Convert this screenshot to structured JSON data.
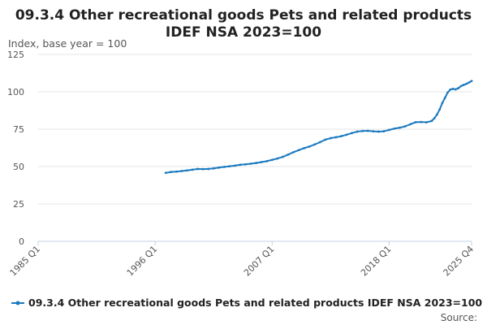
{
  "chart_data": {
    "type": "line",
    "title_line1": "09.3.4 Other recreational goods Pets and related products",
    "title_line2": "IDEF NSA 2023=100",
    "ylabel": "Index, base year = 100",
    "ylim": [
      0,
      125
    ],
    "yticks": [
      0,
      25,
      50,
      75,
      100,
      125
    ],
    "xlim": [
      "1985 Q1",
      "2025 Q4"
    ],
    "xticks": [
      "1985 Q1",
      "1996 Q1",
      "2007 Q1",
      "2018 Q1",
      "2025 Q4"
    ],
    "grid": true,
    "legend_position": "bottom",
    "color": "#1a7ac0",
    "series": [
      {
        "name": "09.3.4 Other recreational goods Pets and related products IDEF NSA 2023=100",
        "points": [
          [
            "1997 Q1",
            45.8
          ],
          [
            "1997 Q3",
            46.4
          ],
          [
            "1998 Q1",
            46.6
          ],
          [
            "1998 Q3",
            47.0
          ],
          [
            "1999 Q1",
            47.4
          ],
          [
            "1999 Q3",
            47.9
          ],
          [
            "2000 Q1",
            48.4
          ],
          [
            "2000 Q3",
            48.3
          ],
          [
            "2001 Q1",
            48.4
          ],
          [
            "2001 Q3",
            48.8
          ],
          [
            "2002 Q1",
            49.3
          ],
          [
            "2002 Q3",
            49.8
          ],
          [
            "2003 Q1",
            50.2
          ],
          [
            "2003 Q3",
            50.6
          ],
          [
            "2004 Q1",
            51.2
          ],
          [
            "2004 Q3",
            51.5
          ],
          [
            "2005 Q1",
            51.9
          ],
          [
            "2005 Q3",
            52.4
          ],
          [
            "2006 Q1",
            53.0
          ],
          [
            "2006 Q3",
            53.6
          ],
          [
            "2007 Q1",
            54.5
          ],
          [
            "2007 Q3",
            55.4
          ],
          [
            "2008 Q1",
            56.5
          ],
          [
            "2008 Q3",
            58.0
          ],
          [
            "2009 Q1",
            59.6
          ],
          [
            "2009 Q3",
            61.0
          ],
          [
            "2010 Q1",
            62.3
          ],
          [
            "2010 Q3",
            63.4
          ],
          [
            "2011 Q1",
            64.8
          ],
          [
            "2011 Q3",
            66.3
          ],
          [
            "2012 Q1",
            68.0
          ],
          [
            "2012 Q3",
            69.0
          ],
          [
            "2013 Q1",
            69.6
          ],
          [
            "2013 Q3",
            70.3
          ],
          [
            "2014 Q1",
            71.3
          ],
          [
            "2014 Q3",
            72.4
          ],
          [
            "2015 Q1",
            73.4
          ],
          [
            "2015 Q3",
            73.8
          ],
          [
            "2016 Q1",
            73.9
          ],
          [
            "2016 Q3",
            73.6
          ],
          [
            "2017 Q1",
            73.4
          ],
          [
            "2017 Q3",
            73.6
          ],
          [
            "2018 Q1",
            74.5
          ],
          [
            "2018 Q3",
            75.4
          ],
          [
            "2019 Q1",
            76.0
          ],
          [
            "2019 Q3",
            76.9
          ],
          [
            "2020 Q1",
            78.3
          ],
          [
            "2020 Q3",
            79.7
          ],
          [
            "2021 Q1",
            79.8
          ],
          [
            "2021 Q3",
            79.6
          ],
          [
            "2022 Q1",
            80.5
          ],
          [
            "2022 Q2",
            82.3
          ],
          [
            "2022 Q3",
            84.8
          ],
          [
            "2022 Q4",
            88.2
          ],
          [
            "2023 Q1",
            92.5
          ],
          [
            "2023 Q2",
            96.0
          ],
          [
            "2023 Q3",
            99.5
          ],
          [
            "2023 Q4",
            101.5
          ],
          [
            "2024 Q1",
            102.0
          ],
          [
            "2024 Q2",
            101.6
          ],
          [
            "2024 Q3",
            102.4
          ],
          [
            "2024 Q4",
            103.8
          ],
          [
            "2025 Q1",
            104.6
          ],
          [
            "2025 Q2",
            105.3
          ],
          [
            "2025 Q3",
            106.2
          ],
          [
            "2025 Q4",
            107.2
          ]
        ]
      }
    ]
  },
  "footer": {
    "source_label": "Source:"
  }
}
